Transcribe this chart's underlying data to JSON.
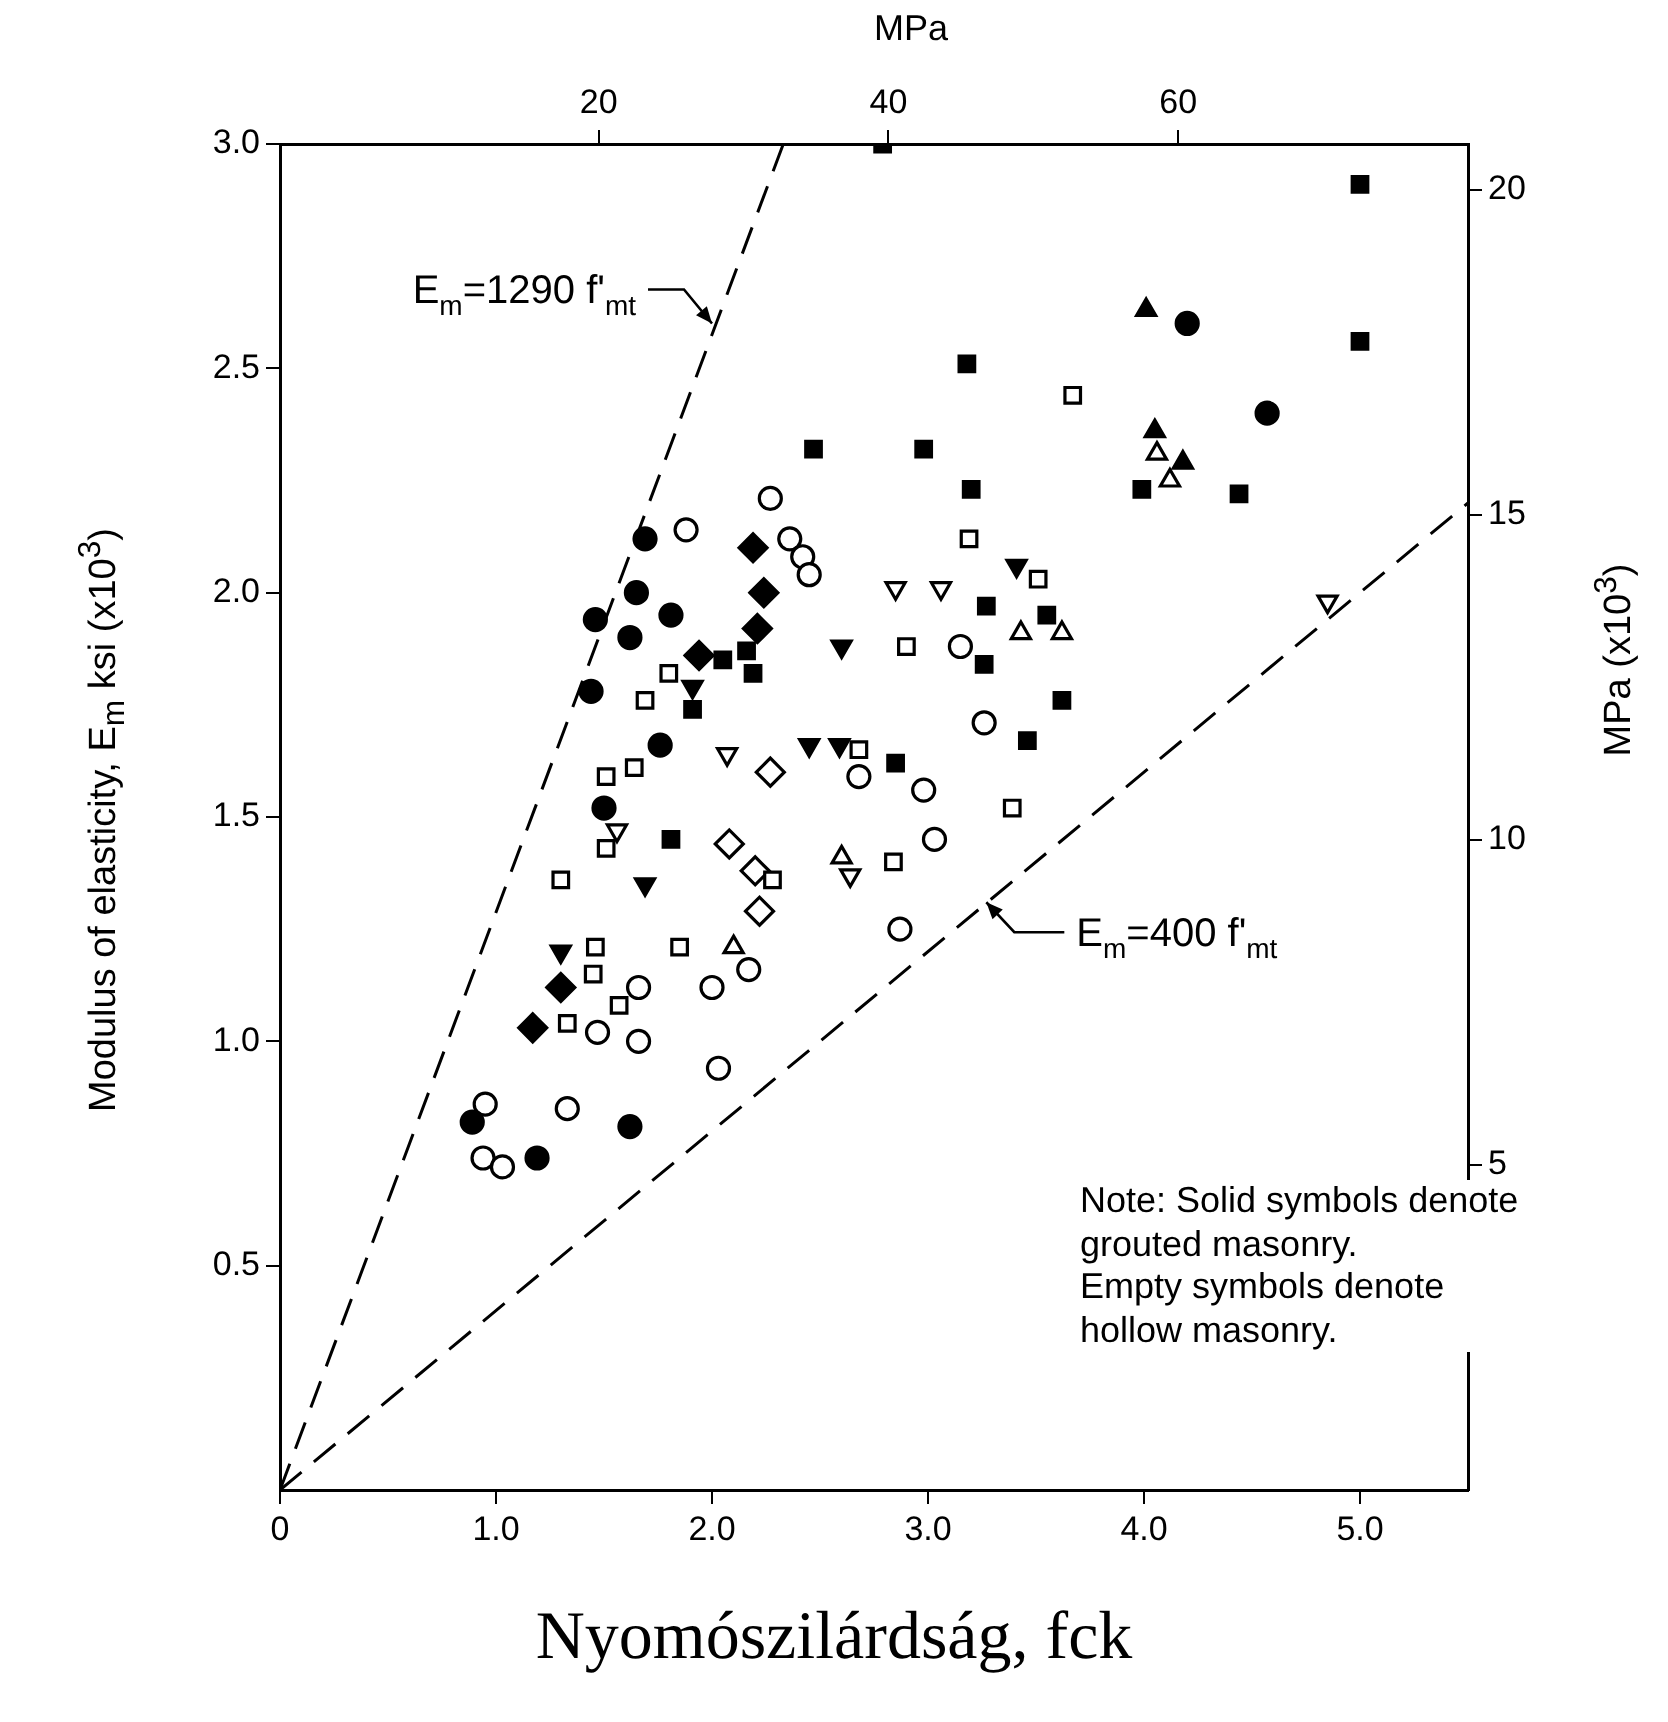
{
  "chart_data": {
    "type": "scatter",
    "xlabel": "Nyomószilárdság, fck",
    "ylabel": "Modulus of elasticity, E$_{m}$ ksi (x10$^{3}$)",
    "y2label": "MPa (x10$^{3}$)",
    "x2label": "MPa",
    "xlim": [
      0,
      5.5
    ],
    "xticks": [
      0,
      {
        "value": 1,
        "label": "1.0"
      },
      {
        "value": 2,
        "label": "2.0"
      },
      {
        "value": 3,
        "label": "3.0"
      },
      {
        "value": 4,
        "label": "4.0"
      },
      {
        "value": 5,
        "label": "5.0"
      }
    ],
    "ylim": [
      0,
      3.0
    ],
    "yticks": [
      0.5,
      {
        "value": 1,
        "label": "1.0"
      },
      1.5,
      {
        "value": 2,
        "label": "2.0"
      },
      2.5,
      {
        "value": 3,
        "label": "3.0"
      }
    ],
    "y2lim": [
      0,
      20.7
    ],
    "y2ticks": [
      5,
      10,
      15,
      20
    ],
    "x2lim": [
      -2,
      80
    ],
    "x2ticks": [
      20,
      40,
      60
    ],
    "grid": false,
    "legend": false,
    "annotations": [
      {
        "text": "E$_{m}$=1290 f'$_{mt}$",
        "x": 2.0,
        "y": 2.6
      },
      {
        "text": "E$_{m}$=400 f'$_{mt}$",
        "x": 3.27,
        "y": 1.31
      },
      "Note: Solid symbols denote\ngrouted masonry.\nEmpty symbols denote\nhollow masonry."
    ],
    "series": [
      {
        "type": "scatter",
        "marker": "circle",
        "color": "#000000",
        "x": [
          0.89,
          1.19,
          1.62,
          1.5,
          1.44,
          1.76,
          1.62,
          1.46,
          1.81,
          1.65,
          1.69,
          4.2,
          4.57
        ],
        "values": [
          0.82,
          0.74,
          0.81,
          1.52,
          1.78,
          1.66,
          1.9,
          1.94,
          1.95,
          2.0,
          2.12,
          2.6,
          2.4
        ]
      },
      {
        "type": "scatter",
        "marker": "circle",
        "color": "#ffffff",
        "x": [
          0.95,
          0.94,
          1.03,
          1.33,
          2.03,
          1.47,
          1.66,
          1.66,
          2.0,
          2.17,
          2.87,
          3.03,
          2.98,
          2.68,
          3.26,
          3.15,
          1.88,
          2.27,
          2.36,
          2.42,
          2.45
        ],
        "values": [
          0.86,
          0.74,
          0.72,
          0.85,
          0.94,
          1.02,
          1.0,
          1.12,
          1.12,
          1.16,
          1.25,
          1.45,
          1.56,
          1.59,
          1.71,
          1.88,
          2.14,
          2.21,
          2.12,
          2.08,
          2.04
        ]
      },
      {
        "type": "scatter",
        "marker": "square",
        "color": "#000000",
        "x": [
          1.81,
          1.91,
          2.05,
          2.16,
          2.19,
          2.47,
          2.85,
          3.46,
          3.62,
          3.26,
          3.27,
          3.55,
          3.2,
          2.98,
          3.18,
          2.79,
          3.99,
          4.44,
          5.0,
          5.0
        ],
        "values": [
          1.45,
          1.74,
          1.85,
          1.87,
          1.82,
          2.32,
          1.62,
          1.67,
          1.76,
          1.84,
          1.97,
          1.95,
          2.23,
          2.32,
          2.51,
          3.0,
          2.23,
          2.22,
          2.56,
          2.91
        ]
      },
      {
        "type": "scatter",
        "marker": "square",
        "color": "#ffffff",
        "x": [
          1.33,
          1.57,
          1.45,
          1.46,
          1.85,
          1.3,
          1.51,
          1.51,
          1.64,
          1.69,
          1.8,
          2.28,
          2.84,
          3.39,
          2.68,
          2.9,
          3.19,
          3.51,
          3.67
        ],
        "values": [
          1.04,
          1.08,
          1.15,
          1.21,
          1.21,
          1.36,
          1.43,
          1.59,
          1.61,
          1.76,
          1.82,
          1.36,
          1.4,
          1.52,
          1.65,
          1.88,
          2.12,
          2.03,
          2.44
        ]
      },
      {
        "type": "scatter",
        "marker": "triangle-down",
        "color": "#000000",
        "x": [
          1.3,
          1.69,
          1.91,
          2.45,
          2.59,
          2.6,
          3.41
        ],
        "values": [
          1.2,
          1.35,
          1.79,
          1.66,
          1.66,
          1.88,
          2.06
        ]
      },
      {
        "type": "scatter",
        "marker": "triangle-down",
        "color": "#ffffff",
        "x": [
          1.56,
          2.07,
          2.64,
          2.85,
          3.06,
          4.85
        ],
        "values": [
          1.47,
          1.64,
          1.37,
          2.01,
          2.01,
          1.98
        ]
      },
      {
        "type": "scatter",
        "marker": "triangle",
        "color": "#000000",
        "x": [
          4.01,
          4.05,
          4.18
        ],
        "values": [
          2.63,
          2.36,
          2.29
        ]
      },
      {
        "type": "scatter",
        "marker": "triangle",
        "color": "#ffffff",
        "x": [
          2.1,
          2.6,
          3.43,
          3.62,
          4.06,
          4.12
        ],
        "values": [
          1.21,
          1.41,
          1.91,
          1.91,
          2.31,
          2.25
        ]
      },
      {
        "type": "scatter",
        "marker": "diamond",
        "color": "#000000",
        "x": [
          1.17,
          1.3,
          1.94,
          2.21,
          2.24,
          2.19
        ],
        "values": [
          1.03,
          1.12,
          1.86,
          1.92,
          2.0,
          2.1
        ]
      },
      {
        "type": "scatter",
        "marker": "diamond",
        "color": "#ffffff",
        "x": [
          2.22,
          2.2,
          2.08,
          2.27
        ],
        "values": [
          1.29,
          1.38,
          1.44,
          1.6
        ]
      },
      {
        "type": "line",
        "line_style": "dashed",
        "marker": "none",
        "color": "#000000",
        "x": [
          0,
          2.33
        ],
        "values": [
          0,
          3.0
        ]
      },
      {
        "type": "line",
        "line_style": "dashed",
        "marker": "none",
        "color": "#000000",
        "x": [
          0,
          5.5
        ],
        "values": [
          0,
          2.2
        ]
      }
    ]
  }
}
